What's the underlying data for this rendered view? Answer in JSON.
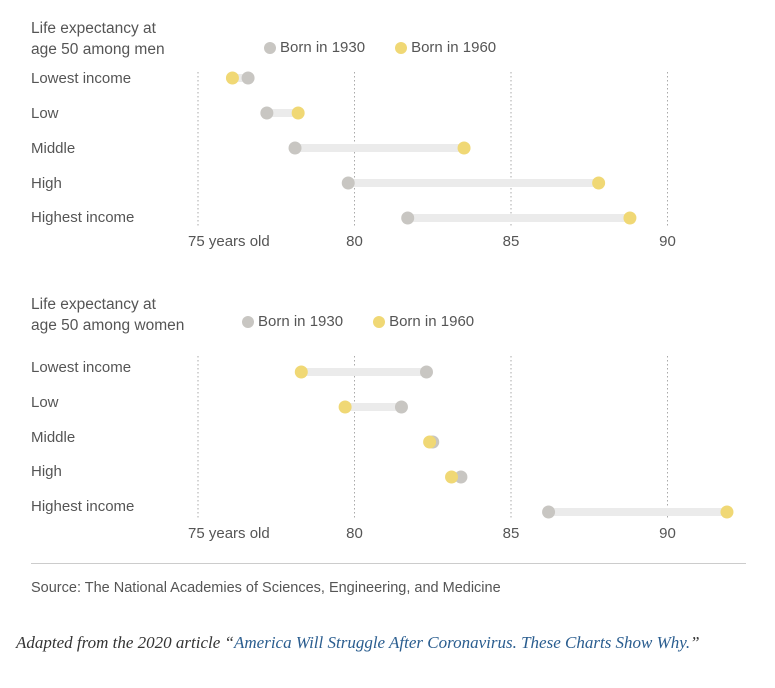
{
  "colors": {
    "born1930": "#c8c6c2",
    "born1960": "#f0d875",
    "range": "#ebebeb",
    "grid": "#aaaaaa"
  },
  "legend": {
    "born1930": "Born in 1930",
    "born1960": "Born in 1960"
  },
  "rows": [
    "Lowest income",
    "Low",
    "Middle",
    "High",
    "Highest income"
  ],
  "chart_data": [
    {
      "type": "dot-range",
      "title": "Life expectancy at age 50 among men",
      "title_lines": [
        "Life expectancy at",
        "age 50 among men"
      ],
      "xlim": [
        75,
        92
      ],
      "ticks": [
        75,
        80,
        85,
        90
      ],
      "tick_labels": [
        "75 years old",
        "80",
        "85",
        "90"
      ],
      "categories": [
        "Lowest income",
        "Low",
        "Middle",
        "High",
        "Highest income"
      ],
      "series": [
        {
          "name": "Born in 1930",
          "values": [
            76.6,
            77.2,
            78.1,
            79.8,
            81.7
          ]
        },
        {
          "name": "Born in 1960",
          "values": [
            76.1,
            78.2,
            83.5,
            87.8,
            88.8
          ]
        }
      ]
    },
    {
      "type": "dot-range",
      "title": "Life expectancy at age 50 among women",
      "title_lines": [
        "Life expectancy at",
        "age 50 among women"
      ],
      "xlim": [
        75,
        92
      ],
      "ticks": [
        75,
        80,
        85,
        90
      ],
      "tick_labels": [
        "75 years old",
        "80",
        "85",
        "90"
      ],
      "categories": [
        "Lowest income",
        "Low",
        "Middle",
        "High",
        "Highest income"
      ],
      "series": [
        {
          "name": "Born in 1930",
          "values": [
            82.3,
            81.5,
            82.5,
            83.4,
            86.2
          ]
        },
        {
          "name": "Born in 1960",
          "values": [
            78.3,
            79.7,
            82.4,
            83.1,
            91.9
          ]
        }
      ]
    }
  ],
  "source": "Source: The National Academies of Sciences, Engineering, and Medicine",
  "credit": {
    "prefix": "Adapted from the 2020 article “",
    "link": "America Will Struggle After Coronavirus. These Charts Show Why.",
    "suffix": "”"
  }
}
